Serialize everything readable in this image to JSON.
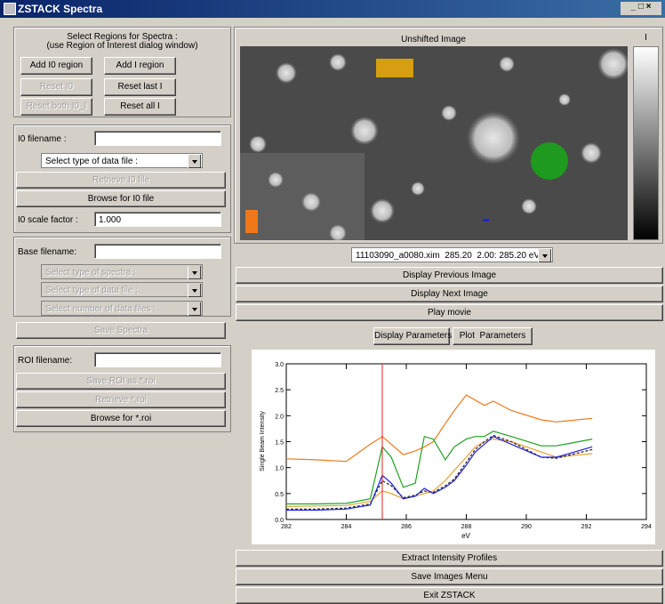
{
  "window": {
    "title": "ZSTACK Spectra"
  },
  "regions": {
    "heading": "Select Regions for Spectra :",
    "hint": "(use Region of Interest dialog window)",
    "buttons": [
      "Add I0 region",
      "Add I region",
      "Reset I0",
      "Reset last I",
      "Reset both I0_I",
      "Reset all I"
    ]
  },
  "i0": {
    "filename_label": "I0 filename :",
    "file_type": "Select type of data file :",
    "retrieve": "Retrieve I0 file",
    "browse": "Browse for I0 file",
    "scale_label": "I0 scale factor :",
    "scale_value": "1.000"
  },
  "base": {
    "filename_label": "Base filename:",
    "spectra_type": "Select type of spectra :",
    "file_type": "Select type of data file :",
    "file_count": "Select number of data files :",
    "save": "Save Spectra"
  },
  "roi": {
    "filename_label": "ROI filename:",
    "save": "Save ROI as *.roi",
    "retrieve": "Retrieve *.roi",
    "browse": "Browse for *.roi"
  },
  "image": {
    "title": "Unshifted Image",
    "colorbar_label": "I",
    "selector": "11103090_a0080.xim  285.20  2.00: 285.20 eV"
  },
  "buttons": {
    "previous": "Display Previous Image",
    "next": "Display Next Image",
    "movie": "Play movie",
    "display_params": "Display Parameters",
    "plot_params": "Plot  Parameters",
    "extract": "Extract Intensity Profiles",
    "save_images": "Save Images Menu",
    "exit": "Exit ZSTACK"
  },
  "chart_data": {
    "type": "line",
    "ylabel": "Single Beam Intensity",
    "xlabel": "eV",
    "x": [
      282,
      283,
      284,
      284.8,
      285.2,
      285.5,
      285.9,
      286.3,
      286.6,
      286.9,
      287.3,
      287.6,
      288,
      288.3,
      288.6,
      288.9,
      289.5,
      290.5,
      291,
      292.2
    ],
    "series": [
      {
        "color": "#f07818",
        "values": [
          1.17,
          1.15,
          1.12,
          1.45,
          1.6,
          1.45,
          1.25,
          1.32,
          1.4,
          1.5,
          1.85,
          2.1,
          2.4,
          2.3,
          2.2,
          2.28,
          2.1,
          1.92,
          1.88,
          1.95
        ]
      },
      {
        "color": "#20a020",
        "values": [
          0.3,
          0.3,
          0.31,
          0.4,
          1.4,
          1.2,
          0.62,
          0.7,
          1.6,
          1.55,
          1.15,
          1.4,
          1.55,
          1.6,
          1.6,
          1.7,
          1.6,
          1.42,
          1.42,
          1.55
        ]
      },
      {
        "color": "#e8a030",
        "values": [
          0.25,
          0.26,
          0.27,
          0.35,
          0.55,
          0.5,
          0.4,
          0.45,
          0.5,
          0.55,
          0.75,
          0.95,
          1.2,
          1.4,
          1.5,
          1.55,
          1.5,
          1.3,
          1.2,
          1.27
        ]
      },
      {
        "color": "#202020",
        "dashed": true,
        "values": [
          0.2,
          0.2,
          0.22,
          0.3,
          0.75,
          0.65,
          0.42,
          0.47,
          0.55,
          0.52,
          0.65,
          0.78,
          1.1,
          1.35,
          1.5,
          1.62,
          1.5,
          1.2,
          1.18,
          1.35
        ]
      },
      {
        "color": "#2020e0",
        "values": [
          0.18,
          0.18,
          0.2,
          0.28,
          0.85,
          0.7,
          0.4,
          0.45,
          0.6,
          0.5,
          0.62,
          0.75,
          1.05,
          1.3,
          1.45,
          1.6,
          1.45,
          1.2,
          1.2,
          1.4
        ]
      }
    ],
    "cursor_x": 285.2,
    "cursor_color": "#e02020",
    "xlim": [
      282,
      294
    ],
    "xticks": [
      282,
      284,
      286,
      288,
      290,
      292,
      294
    ],
    "ylim": [
      0,
      3
    ],
    "yticks": [
      {
        "value": 0,
        "label": "0.0"
      },
      0.5,
      {
        "value": 1,
        "label": "1.0"
      },
      1.5,
      {
        "value": 2,
        "label": "2.0"
      },
      2.5,
      {
        "value": 3,
        "label": "3.0"
      }
    ]
  }
}
